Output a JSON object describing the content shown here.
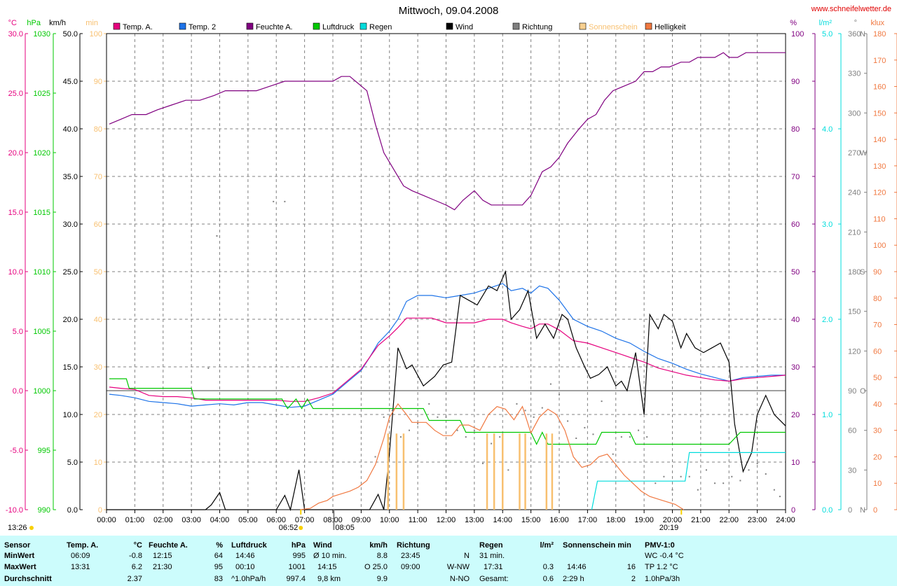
{
  "title": "Mittwoch, 09.04.2008",
  "website": "www.schneifelwetter.de",
  "legend": [
    {
      "label": "Temp. A.",
      "color": "#e6007e"
    },
    {
      "label": "Temp. 2",
      "color": "#1e73e8"
    },
    {
      "label": "Feuchte A.",
      "color": "#800080"
    },
    {
      "label": "Luftdruck",
      "color": "#00c800"
    },
    {
      "label": "Regen",
      "color": "#00dcdc"
    },
    {
      "label": "Wind",
      "color": "#000000"
    },
    {
      "label": "Richtung",
      "color": "#808080"
    },
    {
      "label": "Sonnenschein",
      "color": "#f8d090"
    },
    {
      "label": "Helligkeit",
      "color": "#f07840"
    }
  ],
  "axis_units": {
    "temp": "°C",
    "pressure": "hPa",
    "wind": "km/h",
    "sun": "min",
    "humidity": "%",
    "rain": "l/m²",
    "direction": "°",
    "light": "klux"
  },
  "colors": {
    "temp": "#e6007e",
    "pressure": "#00c800",
    "wind": "#000000",
    "sun": "#f8c070",
    "humidity": "#800080",
    "rain": "#00dcdc",
    "direction": "#808080",
    "light": "#f07840"
  },
  "markers": {
    "sunrise": "06:52",
    "sunset": "20:19",
    "daylength": "13:26",
    "shade": "08:05"
  },
  "chart_data": {
    "type": "line",
    "x_unit": "hours",
    "x_ticks": [
      "00:00",
      "01:00",
      "02:00",
      "03:00",
      "04:00",
      "05:00",
      "06:00",
      "07:00",
      "08:00",
      "09:00",
      "10:00",
      "11:00",
      "12:00",
      "13:00",
      "14:00",
      "15:00",
      "16:00",
      "17:00",
      "18:00",
      "19:00",
      "20:00",
      "21:00",
      "22:00",
      "23:00",
      "24:00"
    ],
    "xlim": [
      0,
      24
    ],
    "axes": {
      "temp": {
        "min": -10,
        "max": 30,
        "ticks": [
          "-10.0",
          "-5.0",
          "0.0",
          "5.0",
          "10.0",
          "15.0",
          "20.0",
          "25.0",
          "30.0"
        ]
      },
      "pressure": {
        "min": 990,
        "max": 1030,
        "ticks": [
          "990",
          "995",
          "1000",
          "1005",
          "1010",
          "1015",
          "1020",
          "1025",
          "1030"
        ]
      },
      "wind": {
        "min": 0,
        "max": 50,
        "ticks": [
          "0.0",
          "5.0",
          "10.0",
          "15.0",
          "20.0",
          "25.0",
          "30.0",
          "35.0",
          "40.0",
          "45.0",
          "50.0"
        ]
      },
      "sun": {
        "min": 0,
        "max": 100,
        "ticks": [
          "0",
          "10",
          "20",
          "30",
          "40",
          "50",
          "60",
          "70",
          "80",
          "90",
          "100"
        ]
      },
      "humidity": {
        "min": 0,
        "max": 100,
        "ticks": [
          "0",
          "10",
          "20",
          "30",
          "40",
          "50",
          "60",
          "70",
          "80",
          "90",
          "100"
        ]
      },
      "rain": {
        "min": 0,
        "max": 5,
        "ticks": [
          "0.0",
          "1.0",
          "2.0",
          "3.0",
          "4.0",
          "5.0"
        ]
      },
      "direction": {
        "min": 0,
        "max": 360,
        "ticks": [
          "0",
          "30",
          "60",
          "90",
          "120",
          "150",
          "180",
          "210",
          "240",
          "270",
          "300",
          "330",
          "360"
        ],
        "compass": {
          "0": "N",
          "90": "O",
          "180": "S",
          "270": "W",
          "360": "N"
        }
      },
      "light": {
        "min": 0,
        "max": 180,
        "ticks": [
          "0",
          "10",
          "20",
          "30",
          "40",
          "50",
          "60",
          "70",
          "80",
          "90",
          "100",
          "110",
          "120",
          "130",
          "140",
          "150",
          "160",
          "170",
          "180"
        ]
      }
    },
    "series": [
      {
        "name": "Feuchte A.",
        "axis": "humidity",
        "x": [
          0.1,
          0.5,
          0.9,
          1.4,
          1.8,
          2.3,
          2.8,
          3.3,
          3.8,
          4.2,
          4.8,
          5.3,
          5.8,
          6.3,
          6.9,
          7.5,
          8,
          8.3,
          8.6,
          9,
          9.2,
          9.5,
          9.8,
          10.2,
          10.5,
          10.8,
          11.2,
          11.6,
          12,
          12.3,
          12.6,
          13,
          13.3,
          13.6,
          13.9,
          14.3,
          14.7,
          15,
          15.4,
          15.7,
          16,
          16.3,
          16.7,
          17,
          17.3,
          17.6,
          17.9,
          18.3,
          18.7,
          19,
          19.3,
          19.6,
          19.9,
          20.3,
          20.6,
          20.9,
          21.2,
          21.5,
          21.8,
          22,
          22.3,
          22.6,
          23,
          23.5,
          24
        ],
        "y": [
          81,
          82,
          83,
          83,
          84,
          85,
          86,
          86,
          87,
          88,
          88,
          88,
          89,
          90,
          90,
          90,
          90,
          91,
          91,
          89,
          88,
          81,
          75,
          71,
          68,
          67,
          66,
          65,
          64,
          63,
          65,
          67,
          65,
          64,
          64,
          64,
          64,
          66,
          71,
          72,
          74,
          77,
          80,
          82,
          83,
          86,
          88,
          89,
          90,
          92,
          92,
          93,
          93,
          94,
          94,
          95,
          95,
          95,
          96,
          95,
          95,
          96,
          96,
          96,
          96
        ]
      },
      {
        "name": "Temp. 2",
        "axis": "temp",
        "x": [
          0.1,
          0.5,
          1,
          1.5,
          2,
          2.5,
          3,
          3.5,
          4,
          4.5,
          5,
          5.5,
          6,
          6.5,
          7,
          7.5,
          8,
          8.5,
          9,
          9.3,
          9.6,
          10,
          10.3,
          10.6,
          11,
          11.5,
          12,
          12.5,
          13,
          13.5,
          14,
          14.3,
          14.7,
          15,
          15.3,
          15.6,
          16,
          16.5,
          17,
          17.5,
          18,
          18.5,
          19,
          19.5,
          20,
          20.5,
          21,
          21.5,
          22,
          22.5,
          23,
          23.5,
          24
        ],
        "y": [
          -0.3,
          -0.4,
          -0.6,
          -0.9,
          -1,
          -1.1,
          -1.3,
          -1.2,
          -1.1,
          -1.2,
          -1,
          -1,
          -1.2,
          -1.4,
          -1.3,
          -0.8,
          -0.3,
          0.7,
          1.7,
          2.8,
          4,
          5,
          6,
          7.5,
          8,
          8,
          7.8,
          8,
          8.2,
          8.6,
          9,
          8.4,
          8.6,
          8.2,
          8.8,
          8.6,
          7.6,
          6,
          5.4,
          5,
          4.4,
          4,
          3.3,
          2.7,
          2.3,
          1.8,
          1.4,
          1.1,
          0.8,
          1.1,
          1.2,
          1.3,
          1.3
        ]
      },
      {
        "name": "Temp. A.",
        "axis": "temp",
        "x": [
          0.1,
          0.5,
          1,
          1.5,
          2,
          2.5,
          3,
          3.5,
          4,
          4.5,
          5,
          5.5,
          6,
          6.5,
          7,
          7.5,
          8,
          8.5,
          9,
          9.3,
          9.6,
          10,
          10.3,
          10.6,
          11,
          11.5,
          12,
          12.5,
          13,
          13.5,
          14,
          14.3,
          14.7,
          15,
          15.3,
          15.6,
          16,
          16.5,
          17,
          17.5,
          18,
          18.5,
          19,
          19.5,
          20,
          20.5,
          21,
          21.5,
          22,
          22.5,
          23,
          23.5,
          24
        ],
        "y": [
          0.3,
          0.2,
          0.1,
          -0.4,
          -0.5,
          -0.5,
          -0.6,
          -0.8,
          -0.8,
          -0.8,
          -0.8,
          -0.8,
          -0.8,
          -0.9,
          -0.9,
          -0.6,
          -0.2,
          0.8,
          1.8,
          2.8,
          3.8,
          4.6,
          5.3,
          6.1,
          6.1,
          6.1,
          5.7,
          5.7,
          5.7,
          6,
          6,
          5.7,
          5.4,
          5.2,
          5.6,
          5.6,
          5.1,
          4.2,
          4,
          3.6,
          3.2,
          2.8,
          2.4,
          1.9,
          1.6,
          1.3,
          1.1,
          0.9,
          0.8,
          1,
          1.1,
          1.2,
          1.3
        ]
      },
      {
        "name": "Wind",
        "axis": "wind",
        "x": [
          0,
          3.5,
          3.7,
          4,
          4.2,
          6,
          6.3,
          6.5,
          6.8,
          7,
          7.2,
          8,
          8.4,
          8.6,
          8.9,
          9.1,
          9.3,
          9.6,
          9.8,
          10,
          10.3,
          10.6,
          10.8,
          11.2,
          11.6,
          11.9,
          12.2,
          12.5,
          12.8,
          13.1,
          13.5,
          13.8,
          14.1,
          14.3,
          14.6,
          14.9,
          15.2,
          15.5,
          15.8,
          16.1,
          16.3,
          16.6,
          16.9,
          17.1,
          17.4,
          17.7,
          18,
          18.2,
          18.4,
          18.7,
          19,
          19.2,
          19.5,
          19.7,
          20,
          20.3,
          20.5,
          20.8,
          21.1,
          21.4,
          21.7,
          22,
          22.2,
          22.5,
          22.8,
          23,
          23.3,
          23.6,
          24
        ],
        "y": [
          0,
          0,
          0.5,
          1.8,
          0,
          0,
          1.5,
          0,
          4.2,
          0,
          0,
          0,
          0,
          0,
          0,
          0,
          0,
          1.6,
          0,
          6,
          17,
          14.8,
          15.2,
          13,
          14,
          15.2,
          15.5,
          22.5,
          22,
          21.5,
          23.5,
          23,
          25,
          20,
          21,
          23,
          18,
          19.5,
          18,
          20.5,
          20,
          17,
          15,
          13.8,
          14.2,
          15,
          13,
          13.5,
          12.5,
          16.5,
          10,
          20.5,
          19,
          20.5,
          19.8,
          17,
          18.5,
          17,
          16.5,
          17,
          17.5,
          15.5,
          9,
          4,
          6,
          10,
          12,
          10,
          8.8
        ]
      },
      {
        "name": "Luftdruck",
        "axis": "pressure",
        "x": [
          0.1,
          0.7,
          0.8,
          3,
          3.1,
          6.2,
          6.4,
          6.7,
          6.9,
          7.1,
          7.3,
          11.2,
          11.4,
          12.5,
          12.7,
          13.5,
          13.6,
          15,
          15.2,
          15.4,
          15.6,
          17.3,
          17.5,
          18.5,
          18.7,
          22,
          22.4,
          24
        ],
        "y": [
          1001,
          1001,
          1000.2,
          1000.2,
          999.3,
          999.3,
          998.5,
          999.3,
          998.5,
          999.3,
          998.5,
          998.5,
          997.5,
          997.5,
          996.5,
          996.5,
          996.5,
          996.5,
          995.5,
          996.5,
          995.5,
          995.5,
          996.5,
          996.5,
          995.5,
          995.5,
          996.5,
          996.5
        ]
      },
      {
        "name": "Helligkeit",
        "axis": "light",
        "x": [
          6.85,
          7.2,
          7.5,
          7.8,
          8,
          8.3,
          8.6,
          8.9,
          9.2,
          9.5,
          9.8,
          10,
          10.3,
          10.6,
          10.8,
          11,
          11.3,
          11.6,
          11.9,
          12.2,
          12.5,
          12.8,
          13.2,
          13.5,
          13.8,
          14.1,
          14.4,
          14.7,
          15,
          15.3,
          15.6,
          15.9,
          16.2,
          16.5,
          16.8,
          17.1,
          17.4,
          17.7,
          18,
          18.3,
          18.6,
          18.9,
          19.2,
          19.5,
          19.8,
          20.1,
          20.4
        ],
        "y": [
          0,
          0.5,
          2.5,
          3.5,
          5,
          6,
          7,
          8.5,
          11,
          17,
          27,
          35,
          40,
          36,
          33,
          33,
          33,
          30,
          28,
          28,
          32,
          32,
          30,
          36,
          39,
          38,
          34,
          39,
          29,
          35,
          38,
          36,
          30,
          20,
          16,
          17,
          20,
          21,
          17,
          13,
          10,
          7,
          5,
          4,
          3,
          2,
          0
        ]
      },
      {
        "name": "Regen",
        "axis": "rain",
        "x": [
          17.15,
          17.35,
          17.45,
          18,
          20.4,
          20.45,
          20.6,
          24
        ],
        "y": [
          0,
          0.3,
          0.3,
          0.3,
          0.3,
          0.3,
          0.6,
          0.6
        ]
      },
      {
        "name": "Richtung",
        "axis": "direction",
        "type": "scatter",
        "x": [
          3.6,
          3.9,
          5.9,
          6.3,
          9.5,
          9.8,
          10.1,
          10.4,
          10.7,
          11,
          11.4,
          11.7,
          12,
          12.4,
          12.7,
          13,
          13.3,
          13.6,
          13.9,
          14.2,
          14.5,
          14.8,
          15.1,
          15.4,
          15.7,
          16,
          16.3,
          16.6,
          16.9,
          17.2,
          17.5,
          17.9,
          18.2,
          18.5,
          18.8,
          19.1,
          19.4,
          19.7,
          20,
          20.3,
          20.6,
          20.9,
          21.2,
          21.5,
          21.8,
          22.1,
          22.4,
          22.7,
          23,
          23.3,
          23.6,
          23.8
        ],
        "y": [
          107,
          207,
          233,
          233,
          40,
          70,
          75,
          55,
          60,
          65,
          80,
          70,
          70,
          60,
          55,
          60,
          35,
          50,
          55,
          30,
          80,
          75,
          70,
          77,
          95,
          87,
          67,
          54,
          62,
          57,
          82,
          42,
          55,
          55,
          60,
          55,
          20,
          25,
          15,
          25,
          25,
          15,
          30,
          20,
          20,
          25,
          22,
          30,
          35,
          27,
          15,
          10
        ]
      },
      {
        "name": "Sonnenschein",
        "axis": "sun",
        "type": "bar",
        "x": [
          9.95,
          10.25,
          10.5,
          13.45,
          13.7,
          14,
          14.6,
          14.8,
          15.55,
          15.75
        ],
        "y": [
          16,
          16,
          16,
          16,
          16,
          16,
          16,
          16,
          16,
          16
        ]
      }
    ]
  },
  "stats": {
    "row_labels": [
      "Sensor",
      "MinWert",
      "MaxWert",
      "Durchschnitt"
    ],
    "temp": {
      "header": "Temp. A.",
      "unit": "°C",
      "min_time": "06:09",
      "min_val": "-0.8",
      "max_time": "13:31",
      "max_val": "6.2",
      "avg": "2.37"
    },
    "hum": {
      "header": "Feuchte A.",
      "unit": "%",
      "min_time": "12:15",
      "min_val": "64",
      "max_time": "21:30",
      "max_val": "95",
      "avg": "83"
    },
    "press": {
      "header": "Luftdruck",
      "unit": "hPa",
      "min_time": "14:46",
      "min_val": "995",
      "max_time": "00:10",
      "max_val": "1001",
      "avg_note": "^1.0hPa/h",
      "avg": "997.4"
    },
    "wind": {
      "header": "Wind",
      "unit": "km/h",
      "r1_label": "Ø 10 min.",
      "r1_val": "8.8",
      "r2_time": "14:15",
      "r2_val": "O 25.0",
      "r3_label": "9,8 km",
      "r3_val": "9.9"
    },
    "dir": {
      "header": "Richtung",
      "r1_time": "23:45",
      "r1_val": "N",
      "r2_time": "09:00",
      "r2_val": "W-NW",
      "r3_val": "N-NO"
    },
    "rain": {
      "header": "Regen",
      "unit": "l/m²",
      "r1": "31 min.",
      "r2_time": "17:31",
      "r2_val": "0.3",
      "r3_label": "Gesamt:",
      "r3_val": "0.6"
    },
    "sun": {
      "header": "Sonnenschein min",
      "r2_time": "14:46",
      "r2_val": "16",
      "r3_label": "2:29 h",
      "r3_val": "2"
    },
    "pmv": {
      "header": "PMV-1:0",
      "r1": "WC -0.4 °C",
      "r2": "TP 1.2 °C",
      "r3": "1.0hPa/3h"
    }
  }
}
